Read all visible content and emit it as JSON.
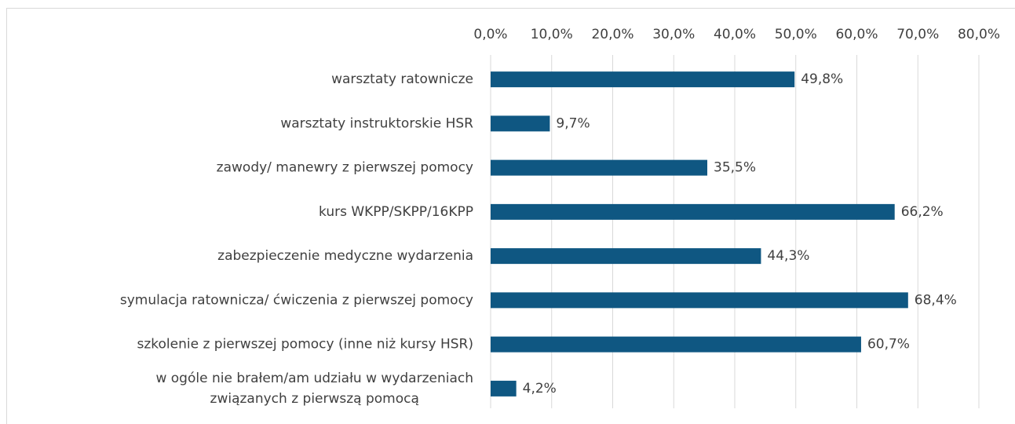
{
  "chart_data": {
    "type": "bar",
    "orientation": "horizontal",
    "categories": [
      "warsztaty ratownicze",
      "warsztaty instruktorskie HSR",
      "zawody/ manewry z pierwszej pomocy",
      "kurs WKPP/SKPP/16KPP",
      "zabezpieczenie medyczne wydarzenia",
      "symulacja ratownicza/ ćwiczenia z pierwszej pomocy",
      "szkolenie z pierwszej pomocy (inne niż kursy HSR)",
      [
        "w ogóle nie brałem/am udziału w wydarzeniach",
        "związanych z pierwszą pomocą"
      ]
    ],
    "values": [
      49.8,
      9.7,
      35.5,
      66.2,
      44.3,
      68.4,
      60.7,
      4.2
    ],
    "value_labels": [
      "49,8%",
      "9,7%",
      "35,5%",
      "66,2%",
      "44,3%",
      "68,4%",
      "60,7%",
      "4,2%"
    ],
    "color": "#0f5782",
    "xlim": [
      0,
      80
    ],
    "xticks": [
      {
        "value": 0,
        "label": "0,0%"
      },
      {
        "value": 10,
        "label": "10,0%"
      },
      {
        "value": 20,
        "label": "20,0%"
      },
      {
        "value": 30,
        "label": "30,0%"
      },
      {
        "value": 40,
        "label": "40,0%"
      },
      {
        "value": 50,
        "label": "50,0%"
      },
      {
        "value": 60,
        "label": "60,0%"
      },
      {
        "value": 70,
        "label": "70,0%"
      },
      {
        "value": 80,
        "label": "80,0%"
      }
    ],
    "grid": true
  }
}
